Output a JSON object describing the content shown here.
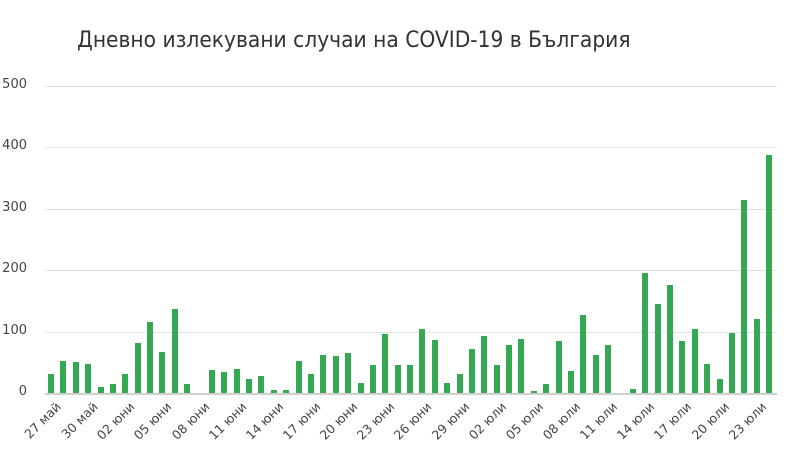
{
  "chart_data": {
    "type": "bar",
    "title": "Дневно излекувани случаи на COVID-19 в България",
    "xlabel": "",
    "ylabel": "",
    "ylim": [
      0,
      500
    ],
    "yticks": [
      0,
      100,
      200,
      300,
      400,
      500
    ],
    "grid": true,
    "legend": null,
    "bar_color": "#34a853",
    "xtick_labels": [
      "27 май",
      "30 май",
      "02 юни",
      "05 юни",
      "08 юни",
      "11 юни",
      "14 юни",
      "17 юни",
      "20 юни",
      "23 юни",
      "26 юни",
      "29 юни",
      "02 юли",
      "05 юли",
      "08 юли",
      "11 юли",
      "14 юли",
      "17 юли",
      "20 юли",
      "23 юли"
    ],
    "categories": [
      "27 май",
      "28 май",
      "29 май",
      "30 май",
      "31 май",
      "01 юни",
      "02 юни",
      "03 юни",
      "04 юни",
      "05 юни",
      "06 юни",
      "07 юни",
      "08 юни",
      "09 юни",
      "10 юни",
      "11 юни",
      "12 юни",
      "13 юни",
      "14 юни",
      "15 юни",
      "16 юни",
      "17 юни",
      "18 юни",
      "19 юни",
      "20 юни",
      "21 юни",
      "22 юни",
      "23 юни",
      "24 юни",
      "25 юни",
      "26 юни",
      "27 юни",
      "28 юни",
      "29 юни",
      "30 юни",
      "01 юли",
      "02 юли",
      "03 юли",
      "04 юли",
      "05 юли",
      "06 юли",
      "07 юли",
      "08 юли",
      "09 юли",
      "10 юли",
      "11 юли",
      "12 юли",
      "13 юли",
      "14 юли",
      "15 юли",
      "16 юли",
      "17 юли",
      "18 юли",
      "19 юли",
      "20 юли",
      "21 юли",
      "22 юли",
      "23 юли",
      "24 юли"
    ],
    "values": [
      31,
      52,
      50,
      47,
      9,
      15,
      31,
      82,
      115,
      66,
      137,
      15,
      0,
      37,
      35,
      39,
      22,
      27,
      5,
      5,
      52,
      31,
      62,
      60,
      65,
      17,
      45,
      96,
      45,
      45,
      104,
      86,
      17,
      31,
      71,
      93,
      45,
      78,
      88,
      4,
      15,
      84,
      36,
      127,
      62,
      78,
      0,
      6,
      196,
      145,
      176,
      84,
      105,
      47,
      22,
      98,
      315,
      120,
      387
    ]
  }
}
